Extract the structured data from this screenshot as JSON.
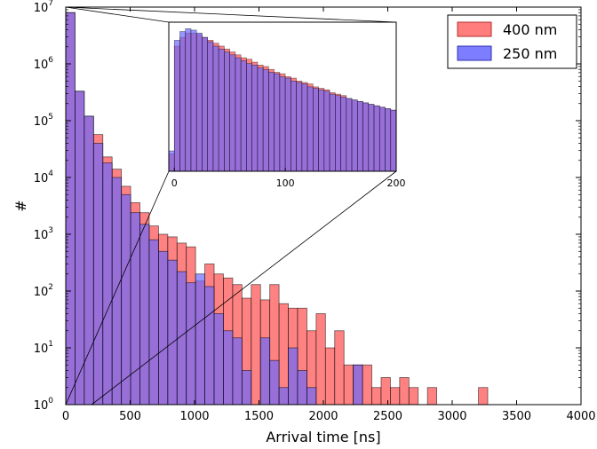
{
  "chart_data": [
    {
      "type": "bar",
      "subtype": "histogram-overlay",
      "title": "",
      "xlabel": "Arrival time [ns]",
      "ylabel": "#",
      "xlim": [
        0,
        4000
      ],
      "ylim": [
        1,
        10000000
      ],
      "yscale": "log",
      "grid": false,
      "legend_position": "top-right",
      "bin_width": 72,
      "x_ticks": [
        "0",
        "500",
        "1000",
        "1500",
        "2000",
        "2500",
        "3000",
        "3500",
        "4000"
      ],
      "y_ticks": [
        {
          "base": "10",
          "exp": "0"
        },
        {
          "base": "10",
          "exp": "1"
        },
        {
          "base": "10",
          "exp": "2"
        },
        {
          "base": "10",
          "exp": "3"
        },
        {
          "base": "10",
          "exp": "4"
        },
        {
          "base": "10",
          "exp": "5"
        },
        {
          "base": "10",
          "exp": "6"
        },
        {
          "base": "10",
          "exp": "7"
        }
      ],
      "series": [
        {
          "name": "400 nm",
          "color": "#ff6666",
          "bin_starts": [
            0,
            72,
            144,
            216,
            288,
            360,
            432,
            504,
            576,
            648,
            720,
            792,
            864,
            936,
            1008,
            1080,
            1152,
            1224,
            1296,
            1368,
            1440,
            1512,
            1584,
            1656,
            1728,
            1800,
            1872,
            1944,
            2016,
            2088,
            2160,
            2232,
            2304,
            2376,
            2448,
            2520,
            2592,
            2664,
            2808,
            3204
          ],
          "values": [
            8000000,
            330000,
            120000,
            57000,
            23000,
            14000,
            7000,
            3600,
            2400,
            1400,
            1000,
            900,
            700,
            600,
            150,
            300,
            200,
            170,
            130,
            75,
            130,
            70,
            130,
            60,
            50,
            50,
            20,
            40,
            10,
            20,
            5,
            5,
            5,
            2,
            3,
            2,
            3,
            2,
            2,
            2
          ]
        },
        {
          "name": "250 nm",
          "color": "#6666ff",
          "bin_starts": [
            0,
            72,
            144,
            216,
            288,
            360,
            432,
            504,
            576,
            648,
            720,
            792,
            864,
            936,
            1008,
            1080,
            1152,
            1224,
            1296,
            1368,
            1440,
            1512,
            1584,
            1656,
            1728,
            1800,
            1872,
            1944,
            2016,
            2088,
            2160,
            2232,
            2304,
            2376
          ],
          "values": [
            8000000,
            330000,
            120000,
            40000,
            18000,
            10000,
            5000,
            2400,
            1500,
            800,
            500,
            350,
            220,
            140,
            200,
            120,
            40,
            20,
            15,
            4,
            1,
            15,
            6,
            2,
            10,
            4,
            2,
            1,
            0,
            0,
            0,
            5,
            0,
            0
          ]
        }
      ]
    },
    {
      "type": "bar",
      "subtype": "histogram-overlay",
      "role": "inset",
      "title": "",
      "xlabel": "",
      "ylabel": "",
      "xlim": [
        -5,
        200
      ],
      "ylim": [
        0,
        1
      ],
      "yscale": "linear",
      "x_ticks": [
        "0",
        "100",
        "200"
      ],
      "bin_width": 5,
      "series": [
        {
          "name": "400 nm",
          "color": "#ff6666",
          "bin_starts": [
            -5,
            0,
            5,
            10,
            15,
            20,
            25,
            30,
            35,
            40,
            45,
            50,
            55,
            60,
            65,
            70,
            75,
            80,
            85,
            90,
            95,
            100,
            105,
            110,
            115,
            120,
            125,
            130,
            135,
            140,
            145,
            150,
            155,
            160,
            165,
            170,
            175,
            180,
            185,
            190,
            195
          ],
          "values": [
            0.12,
            0.86,
            0.92,
            0.95,
            0.95,
            0.94,
            0.92,
            0.9,
            0.88,
            0.86,
            0.84,
            0.82,
            0.8,
            0.78,
            0.77,
            0.75,
            0.73,
            0.72,
            0.7,
            0.68,
            0.67,
            0.65,
            0.64,
            0.62,
            0.61,
            0.6,
            0.58,
            0.57,
            0.56,
            0.54,
            0.53,
            0.52,
            0.5,
            0.49,
            0.48,
            0.47,
            0.46,
            0.45,
            0.44,
            0.43,
            0.42
          ]
        },
        {
          "name": "250 nm",
          "color": "#6666ff",
          "bin_starts": [
            -5,
            0,
            5,
            10,
            15,
            20,
            25,
            30,
            35,
            40,
            45,
            50,
            55,
            60,
            65,
            70,
            75,
            80,
            85,
            90,
            95,
            100,
            105,
            110,
            115,
            120,
            125,
            130,
            135,
            140,
            145,
            150,
            155,
            160,
            165,
            170,
            175,
            180,
            185,
            190,
            195
          ],
          "values": [
            0.14,
            0.9,
            0.96,
            0.98,
            0.97,
            0.95,
            0.92,
            0.89,
            0.86,
            0.84,
            0.82,
            0.8,
            0.78,
            0.76,
            0.74,
            0.73,
            0.71,
            0.7,
            0.68,
            0.67,
            0.65,
            0.64,
            0.62,
            0.61,
            0.6,
            0.58,
            0.57,
            0.56,
            0.55,
            0.53,
            0.52,
            0.51,
            0.5,
            0.49,
            0.48,
            0.47,
            0.46,
            0.45,
            0.44,
            0.43,
            0.42
          ]
        }
      ]
    }
  ]
}
